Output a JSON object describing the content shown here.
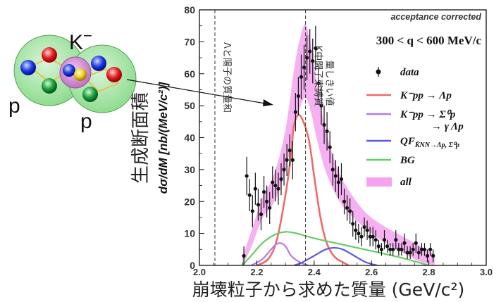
{
  "chart_data": {
    "type": "line",
    "title": "acceptance corrected",
    "subtitle": "300 < q < 600 MeV/c",
    "xlabel": "崩壊粒子から求めた質量 (GeV/c²)",
    "ylabel": "dσ/dM [nb/(MeV/c²)]",
    "ylabel_jp": "生成断面積",
    "xlim": [
      2.0,
      3.0
    ],
    "ylim": [
      0,
      80
    ],
    "xticks": [
      "2.0",
      "2.2",
      "2.4",
      "2.6",
      "2.8",
      "3.0"
    ],
    "yticks": [
      "0",
      "10",
      "20",
      "30",
      "40",
      "50",
      "60",
      "70",
      "80"
    ],
    "vlines": [
      {
        "x": 2.054,
        "label": "Λと陽子の質量和"
      },
      {
        "x": 2.37,
        "label": "K中間子束縛質量しきい値"
      }
    ],
    "legend": [
      {
        "key": "data",
        "text": "data",
        "color": "#000000",
        "kind": "point"
      },
      {
        "key": "kpp_lp",
        "text": "K⁻pp → Λp",
        "color": "#f06a6a",
        "kind": "line"
      },
      {
        "key": "kpp_s0p",
        "text": "K⁻pp → Σ⁰p",
        "text2": "→ γ Λp",
        "color": "#b57ae6",
        "kind": "line"
      },
      {
        "key": "qf",
        "text": "QF",
        "sub": "K̄NN→Λp, Σ⁰p",
        "color": "#5a5ae0",
        "kind": "line"
      },
      {
        "key": "bg",
        "text": "BG",
        "color": "#66cc66",
        "kind": "line"
      },
      {
        "key": "all",
        "text": "all",
        "color": "#f5a3f0",
        "kind": "band"
      }
    ],
    "data": {
      "x": [
        2.155,
        2.165,
        2.175,
        2.185,
        2.195,
        2.205,
        2.215,
        2.225,
        2.235,
        2.245,
        2.255,
        2.265,
        2.275,
        2.285,
        2.295,
        2.305,
        2.315,
        2.325,
        2.335,
        2.345,
        2.355,
        2.365,
        2.375,
        2.385,
        2.395,
        2.405,
        2.415,
        2.425,
        2.435,
        2.445,
        2.455,
        2.465,
        2.475,
        2.485,
        2.495,
        2.505,
        2.515,
        2.525,
        2.535,
        2.545,
        2.555,
        2.565,
        2.575,
        2.585,
        2.595,
        2.605,
        2.615,
        2.625,
        2.635,
        2.645,
        2.655,
        2.665,
        2.675,
        2.685,
        2.695,
        2.705,
        2.715,
        2.725,
        2.735,
        2.745,
        2.755,
        2.765,
        2.775,
        2.785,
        2.795,
        2.805,
        2.815
      ],
      "y": [
        3,
        28,
        22,
        17,
        24,
        19,
        16,
        23,
        20,
        18,
        26,
        25,
        24,
        27,
        30,
        33,
        36,
        33,
        48,
        53,
        59,
        62,
        65,
        67,
        64,
        68,
        57,
        50,
        44,
        42,
        37,
        30,
        28,
        26,
        27,
        20,
        18,
        17,
        13,
        11,
        10,
        9,
        12,
        11,
        9,
        9,
        8,
        6,
        5,
        8,
        6,
        5,
        5,
        8,
        5,
        5,
        7,
        4,
        4,
        5,
        7,
        4,
        5,
        5,
        3,
        5,
        3
      ],
      "err": [
        3,
        6,
        5,
        5,
        5,
        5,
        5,
        5,
        5,
        5,
        5,
        5,
        5,
        5,
        5,
        5,
        5,
        6,
        6,
        6,
        7,
        7,
        7,
        7,
        7,
        7,
        6,
        6,
        6,
        6,
        5,
        5,
        5,
        5,
        5,
        4,
        4,
        4,
        4,
        3,
        3,
        3,
        3,
        3,
        3,
        3,
        3,
        2,
        2,
        3,
        2,
        2,
        2,
        3,
        2,
        2,
        3,
        2,
        2,
        2,
        3,
        2,
        2,
        2,
        2,
        2,
        2
      ]
    },
    "series": [
      {
        "key": "kpp_lp",
        "x": [
          2.2,
          2.24,
          2.27,
          2.3,
          2.32,
          2.33,
          2.35,
          2.38,
          2.4,
          2.42,
          2.44,
          2.46,
          2.48,
          2.5,
          2.52
        ],
        "y": [
          0,
          2,
          8,
          22,
          35,
          44,
          47,
          40,
          28,
          16,
          8,
          4,
          2,
          1,
          0
        ]
      },
      {
        "key": "kpp_s0p",
        "x": [
          2.18,
          2.22,
          2.26,
          2.28,
          2.3,
          2.32,
          2.35,
          2.38
        ],
        "y": [
          0,
          2,
          6,
          7,
          6,
          3,
          1,
          0
        ]
      },
      {
        "key": "qf",
        "x": [
          2.33,
          2.36,
          2.4,
          2.44,
          2.47,
          2.5,
          2.54,
          2.58,
          2.62
        ],
        "y": [
          0,
          1,
          3,
          5,
          5.5,
          5,
          3,
          1,
          0
        ]
      },
      {
        "key": "bg",
        "x": [
          2.15,
          2.18,
          2.22,
          2.26,
          2.3,
          2.34,
          2.4,
          2.5,
          2.6,
          2.7,
          2.8
        ],
        "y": [
          0,
          3,
          7,
          9.5,
          10.5,
          10,
          8.5,
          6.5,
          4.5,
          2.5,
          0
        ]
      },
      {
        "key": "all_mid",
        "x": [
          2.15,
          2.18,
          2.22,
          2.26,
          2.3,
          2.33,
          2.35,
          2.37,
          2.39,
          2.41,
          2.44,
          2.48,
          2.52,
          2.58,
          2.64,
          2.7,
          2.76,
          2.82
        ],
        "y": [
          0,
          8,
          18,
          24,
          36,
          52,
          60,
          64,
          58,
          48,
          36,
          26,
          20,
          14,
          10,
          7,
          4,
          1
        ]
      }
    ]
  },
  "diagram": {
    "k_label": "K",
    "k_sup": "−",
    "p_left": "p",
    "p_right": "p"
  }
}
